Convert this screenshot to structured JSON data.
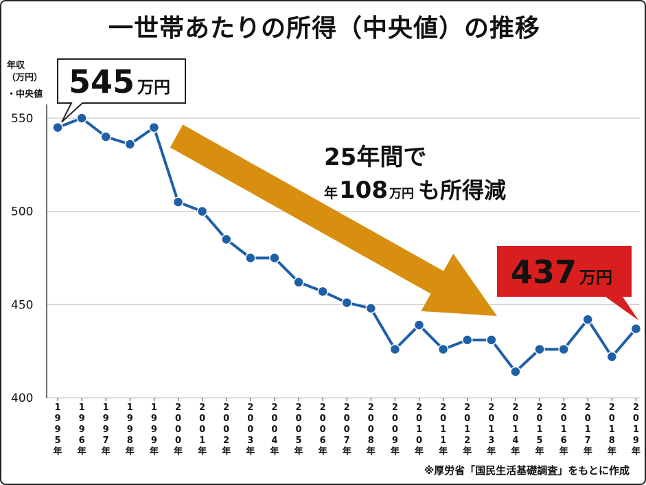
{
  "chart_data": {
    "type": "line",
    "title": "一世帯あたりの所得（中央値）の推移",
    "ylabel_lines": [
      "年収",
      "（万円）",
      "・中央値"
    ],
    "ylim": [
      400,
      550
    ],
    "yticks": [
      400,
      450,
      500,
      550
    ],
    "grid": true,
    "categories": [
      "1995年",
      "1996年",
      "1997年",
      "1998年",
      "1999年",
      "2000年",
      "2001年",
      "2002年",
      "2003年",
      "2004年",
      "2005年",
      "2006年",
      "2007年",
      "2008年",
      "2009年",
      "2010年",
      "2011年",
      "2012年",
      "2013年",
      "2014年",
      "2015年",
      "2016年",
      "2017年",
      "2018年",
      "2019年"
    ],
    "series": [
      {
        "values": [
          545,
          550,
          540,
          536,
          545,
          505,
          500,
          485,
          475,
          475,
          462,
          457,
          451,
          448,
          426,
          439,
          426,
          431,
          431,
          414,
          426,
          426,
          442,
          422,
          437
        ]
      }
    ],
    "annotations": {
      "start_value": "545",
      "start_unit": "万円",
      "end_value": "437",
      "end_unit": "万円",
      "trend_line1": "25年間で",
      "trend_line2_pre": "年",
      "trend_line2_num": "108",
      "trend_line2_unit": "万円",
      "trend_line2_post": "も所得減"
    },
    "source_note": "※厚労省「国民生活基礎調査」をもとに作成",
    "colors": {
      "line": "#1f5fa8",
      "marker": "#1f5fa8",
      "arrow": "#d88f10",
      "end_callout_bg": "#d81e1e",
      "grid": "#c8c8c8"
    }
  }
}
